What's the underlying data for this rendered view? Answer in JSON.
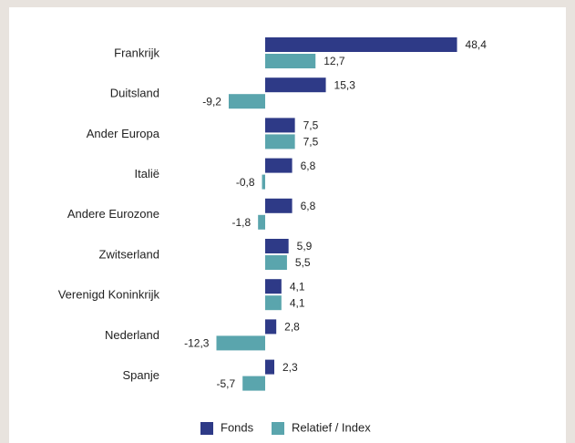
{
  "chart_data": {
    "type": "bar",
    "orientation": "horizontal",
    "categories": [
      "Frankrijk",
      "Duitsland",
      "Ander Europa",
      "Italië",
      "Andere Eurozone",
      "Zwitserland",
      "Verenigd Koninkrijk",
      "Nederland",
      "Spanje"
    ],
    "series": [
      {
        "name": "Fonds",
        "color": "#2e3a87",
        "values": [
          48.4,
          15.3,
          7.5,
          6.8,
          6.8,
          5.9,
          4.1,
          2.8,
          2.3
        ],
        "labels": [
          "48,4",
          "15,3",
          "7,5",
          "6,8",
          "6,8",
          "5,9",
          "4,1",
          "2,8",
          "2,3"
        ]
      },
      {
        "name": "Relatief / Index",
        "color": "#5aa5ad",
        "values": [
          12.7,
          -9.2,
          7.5,
          -0.8,
          -1.8,
          5.5,
          4.1,
          -12.3,
          -5.7
        ],
        "labels": [
          "12,7",
          "-9,2",
          "7,5",
          "-0,8",
          "-1,8",
          "5,5",
          "4,1",
          "-12,3",
          "-5,7"
        ]
      }
    ],
    "legend_position": "bottom",
    "grid": false
  }
}
